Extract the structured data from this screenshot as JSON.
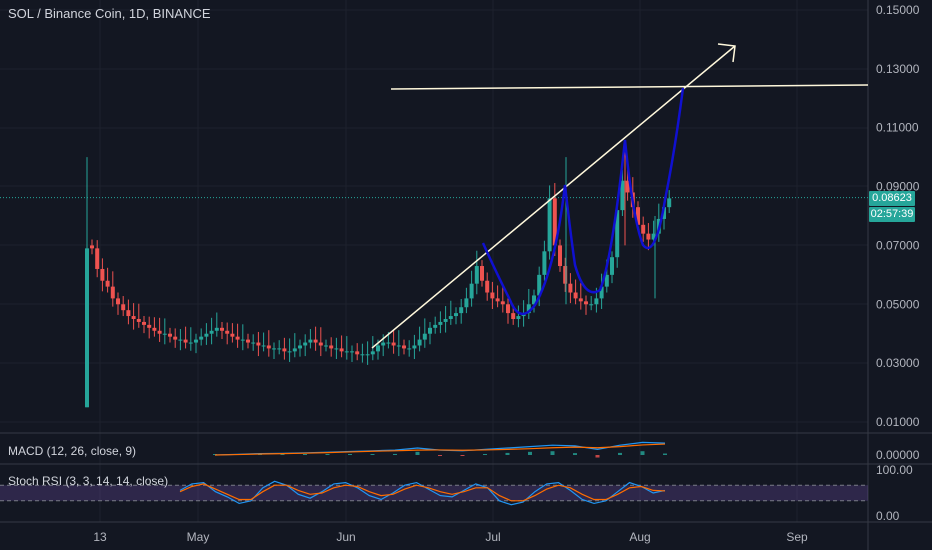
{
  "title": "SOL / Binance Coin, 1D, BINANCE",
  "price_badge": "0.08623",
  "timer_badge": "02:57:39",
  "macd_label": "MACD (12, 26, close, 9)",
  "stoch_label": "Stoch RSI (3, 3, 14, 14, close)",
  "colors": {
    "bg": "#131722",
    "grid": "#1e222d",
    "up": "#26a69a",
    "down": "#ef5350",
    "annotation": "#fff8dc",
    "pattern": "#1010d0",
    "macd": "#2196f3",
    "signal": "#ff6d00",
    "stoch_k": "#2196f3",
    "stoch_d": "#ff6d00",
    "stoch_band": "#7e57c2"
  },
  "chart_data": [
    {
      "type": "candlestick",
      "price_axis": {
        "min": 0,
        "max": 0.15,
        "ticks": [
          "0.15000",
          "0.13000",
          "0.11000",
          "0.09000",
          "0.07000",
          "0.05000",
          "0.03000",
          "0.01000"
        ]
      },
      "time_axis": [
        "13",
        "May",
        "Jun",
        "Jul",
        "Aug",
        "Sep"
      ],
      "last_price": 0.08623,
      "annotations": [
        {
          "kind": "horizontal_line",
          "value": 0.1235
        },
        {
          "kind": "trend_arrow",
          "from_price": 0.0355,
          "to_price": 0.133
        },
        {
          "kind": "cup_pattern_curve",
          "color": "blue"
        }
      ],
      "close_sequence": [
        0.069,
        0.062,
        0.058,
        0.056,
        0.052,
        0.05,
        0.048,
        0.046,
        0.045,
        0.044,
        0.043,
        0.042,
        0.041,
        0.04,
        0.04,
        0.039,
        0.038,
        0.038,
        0.037,
        0.037,
        0.038,
        0.039,
        0.04,
        0.041,
        0.042,
        0.041,
        0.04,
        0.039,
        0.038,
        0.038,
        0.037,
        0.037,
        0.036,
        0.036,
        0.035,
        0.035,
        0.035,
        0.034,
        0.034,
        0.035,
        0.036,
        0.037,
        0.038,
        0.037,
        0.036,
        0.036,
        0.035,
        0.035,
        0.034,
        0.034,
        0.034,
        0.033,
        0.033,
        0.033,
        0.034,
        0.036,
        0.037,
        0.037,
        0.036,
        0.036,
        0.035,
        0.035,
        0.036,
        0.038,
        0.04,
        0.042,
        0.043,
        0.044,
        0.045,
        0.046,
        0.047,
        0.049,
        0.052,
        0.057,
        0.063,
        0.058,
        0.054,
        0.052,
        0.051,
        0.05,
        0.047,
        0.045,
        0.046,
        0.047,
        0.05,
        0.053,
        0.06,
        0.068,
        0.086,
        0.07,
        0.063,
        0.057,
        0.054,
        0.052,
        0.051,
        0.05,
        0.05,
        0.052,
        0.056,
        0.06,
        0.066,
        0.082,
        0.092,
        0.088,
        0.083,
        0.077,
        0.074,
        0.072,
        0.074,
        0.079,
        0.083,
        0.086
      ]
    },
    {
      "type": "line",
      "name": "MACD (12, 26, close, 9)",
      "ticks": [
        "0.00000"
      ],
      "series": [
        {
          "name": "MACD",
          "values": [
            0.0,
            0.0005,
            0.001,
            0.0012,
            0.0015,
            0.002,
            0.0025,
            0.003,
            0.0035,
            0.005,
            0.0035,
            0.003,
            0.004,
            0.005,
            0.006,
            0.007,
            0.0065,
            0.004,
            0.007,
            0.009,
            0.0085
          ]
        },
        {
          "name": "Signal",
          "values": [
            0.0,
            0.0003,
            0.0007,
            0.001,
            0.0013,
            0.0017,
            0.0022,
            0.0027,
            0.003,
            0.0035,
            0.0036,
            0.0034,
            0.0036,
            0.004,
            0.0045,
            0.0052,
            0.0056,
            0.0052,
            0.006,
            0.0072,
            0.0078
          ]
        }
      ]
    },
    {
      "type": "line",
      "name": "Stoch RSI (3, 3, 14, 14, close)",
      "ylim": [
        0,
        100
      ],
      "ticks": [
        "100.00",
        "0.00"
      ],
      "bands": [
        80,
        20
      ],
      "series": [
        {
          "name": "K",
          "values": [
            60,
            85,
            90,
            55,
            35,
            10,
            20,
            70,
            95,
            80,
            45,
            30,
            55,
            85,
            90,
            70,
            40,
            25,
            50,
            80,
            90,
            65,
            40,
            35,
            60,
            85,
            70,
            20,
            5,
            15,
            55,
            85,
            90,
            60,
            25,
            10,
            20,
            55,
            90,
            75,
            50,
            60
          ]
        },
        {
          "name": "D",
          "values": [
            55,
            75,
            85,
            65,
            45,
            25,
            25,
            55,
            80,
            80,
            60,
            45,
            50,
            70,
            80,
            75,
            55,
            40,
            45,
            65,
            80,
            70,
            55,
            45,
            55,
            70,
            70,
            40,
            20,
            20,
            40,
            65,
            80,
            70,
            45,
            25,
            25,
            45,
            70,
            75,
            60,
            58
          ]
        }
      ]
    }
  ]
}
